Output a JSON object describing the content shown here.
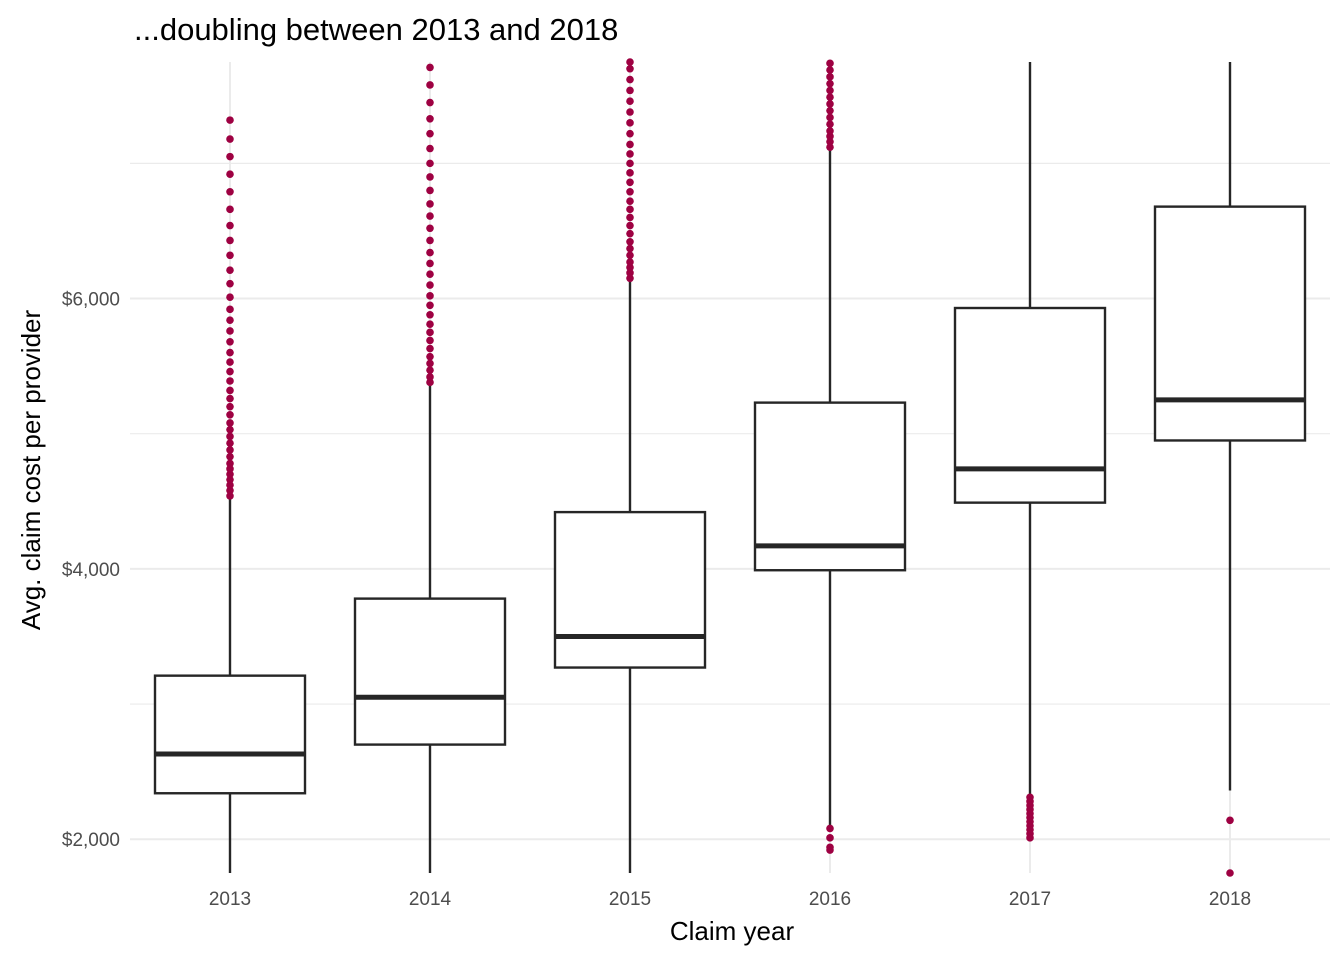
{
  "chart_data": {
    "type": "boxplot",
    "title": "...doubling between 2013 and 2018",
    "xlabel": "Claim year",
    "ylabel": "Avg. claim cost per provider",
    "categories": [
      "2013",
      "2014",
      "2015",
      "2016",
      "2017",
      "2018"
    ],
    "ylim": [
      1750,
      7750
    ],
    "y_ticks": [
      2000,
      4000,
      6000
    ],
    "y_tick_labels": [
      "$2,000",
      "$4,000",
      "$6,000"
    ],
    "grid": true,
    "outlier_color": "#9E0142",
    "box_color": "#262626",
    "boxes": [
      {
        "year": "2013",
        "whisker_low": 1750,
        "q1": 2340,
        "median": 2630,
        "q3": 3210,
        "whisker_high": 4520,
        "outliers_high": [
          4540,
          4580,
          4620,
          4660,
          4700,
          4740,
          4780,
          4830,
          4880,
          4930,
          4980,
          5030,
          5080,
          5140,
          5200,
          5260,
          5320,
          5390,
          5460,
          5530,
          5600,
          5680,
          5760,
          5840,
          5920,
          6010,
          6110,
          6210,
          6320,
          6430,
          6540,
          6660,
          6790,
          6920,
          7050,
          7180,
          7320
        ],
        "outliers_low": []
      },
      {
        "year": "2014",
        "whisker_low": 1750,
        "q1": 2700,
        "median": 3050,
        "q3": 3780,
        "whisker_high": 5360,
        "outliers_high": [
          5380,
          5420,
          5470,
          5520,
          5570,
          5630,
          5690,
          5750,
          5810,
          5880,
          5950,
          6020,
          6100,
          6180,
          6260,
          6340,
          6430,
          6520,
          6610,
          6700,
          6800,
          6900,
          7000,
          7110,
          7220,
          7330,
          7450,
          7580,
          7710
        ],
        "outliers_low": []
      },
      {
        "year": "2015",
        "whisker_low": 1750,
        "q1": 3270,
        "median": 3500,
        "q3": 4420,
        "whisker_high": 6130,
        "outliers_high": [
          6150,
          6190,
          6230,
          6270,
          6320,
          6370,
          6420,
          6480,
          6540,
          6600,
          6660,
          6720,
          6790,
          6860,
          6930,
          7000,
          7070,
          7140,
          7220,
          7300,
          7380,
          7460,
          7540,
          7620,
          7700,
          7750
        ],
        "outliers_low": []
      },
      {
        "year": "2016",
        "whisker_low": 2100,
        "q1": 3990,
        "median": 4170,
        "q3": 5230,
        "whisker_high": 7100,
        "outliers_high": [
          7120,
          7160,
          7200,
          7240,
          7290,
          7340,
          7390,
          7440,
          7490,
          7540,
          7590,
          7640,
          7690,
          7740
        ],
        "outliers_low": [
          2080,
          2010,
          1940,
          1920
        ]
      },
      {
        "year": "2017",
        "whisker_low": 2320,
        "q1": 4490,
        "median": 4740,
        "q3": 5930,
        "whisker_high": 7750,
        "outliers_high": [],
        "outliers_low": [
          2310,
          2280,
          2250,
          2220,
          2190,
          2160,
          2130,
          2100,
          2070,
          2040,
          2010
        ]
      },
      {
        "year": "2018",
        "whisker_low": 2360,
        "q1": 4950,
        "median": 5250,
        "q3": 6680,
        "whisker_high": 7750,
        "outliers_high": [],
        "outliers_low": [
          2140,
          1750
        ]
      }
    ]
  }
}
